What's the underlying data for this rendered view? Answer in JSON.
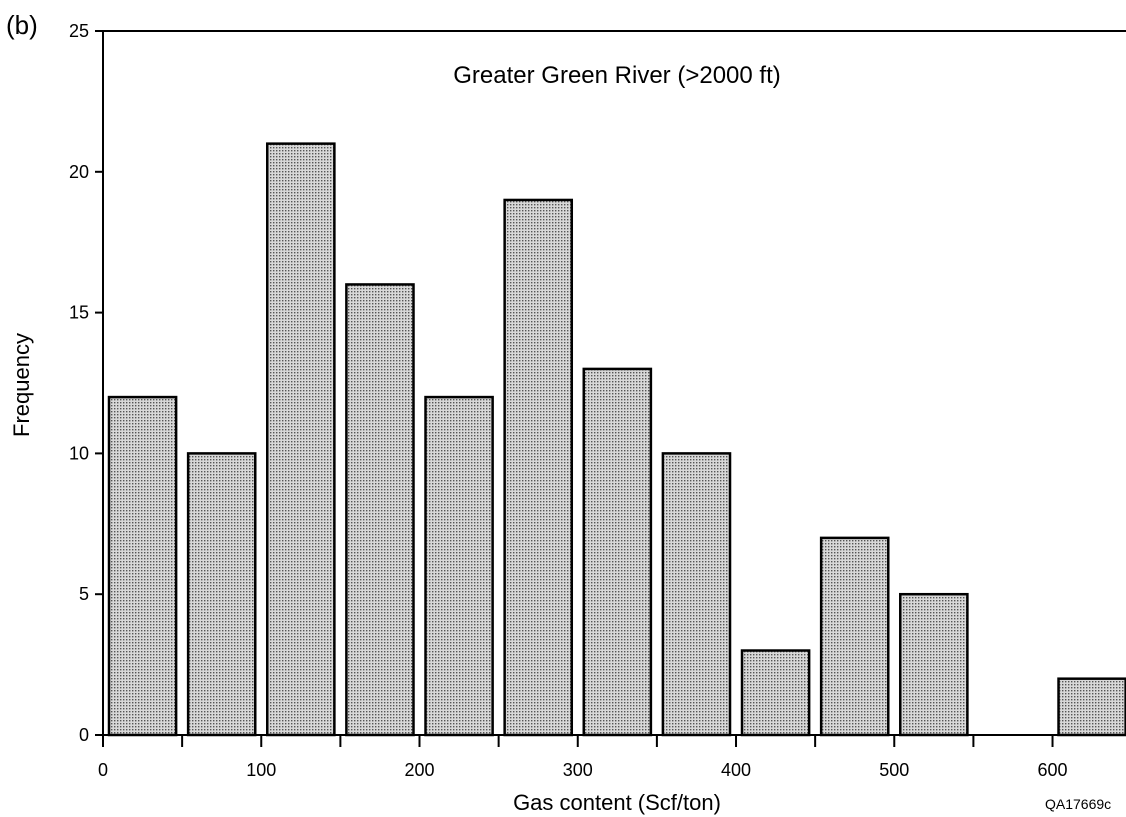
{
  "panel_label": "(b)",
  "figure_code": "QA17669c",
  "chart_data": {
    "type": "bar",
    "title": "Greater Green River (>2000 ft)",
    "xlabel": "Gas content (Scf/ton)",
    "ylabel": "Frequency",
    "xlim": [
      0,
      650
    ],
    "ylim": [
      0,
      25
    ],
    "x_ticks": [
      0,
      100,
      200,
      300,
      400,
      500,
      600
    ],
    "y_ticks": [
      0,
      5,
      10,
      15,
      20,
      25
    ],
    "bin_width": 50,
    "bins": [
      {
        "from": 0,
        "to": 50,
        "value": 12
      },
      {
        "from": 50,
        "to": 100,
        "value": 10
      },
      {
        "from": 100,
        "to": 150,
        "value": 21
      },
      {
        "from": 150,
        "to": 200,
        "value": 16
      },
      {
        "from": 200,
        "to": 250,
        "value": 12
      },
      {
        "from": 250,
        "to": 300,
        "value": 19
      },
      {
        "from": 300,
        "to": 350,
        "value": 13
      },
      {
        "from": 350,
        "to": 400,
        "value": 10
      },
      {
        "from": 400,
        "to": 450,
        "value": 3
      },
      {
        "from": 450,
        "to": 500,
        "value": 7
      },
      {
        "from": 500,
        "to": 550,
        "value": 5
      },
      {
        "from": 550,
        "to": 600,
        "value": 0
      },
      {
        "from": 600,
        "to": 650,
        "value": 2
      }
    ],
    "bar_fill": "#b8b8b8",
    "bar_stroke": "#000000",
    "grid": false,
    "legend": "none"
  }
}
